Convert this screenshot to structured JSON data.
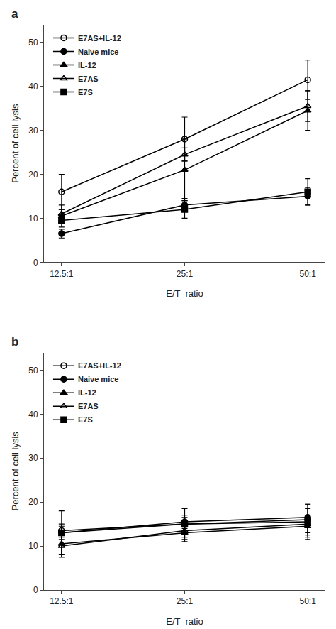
{
  "chart_data": [
    {
      "type": "line",
      "title": "a",
      "categories": [
        "12.5:1",
        "25:1",
        "50:1"
      ],
      "xlabel": "E/T  ratio",
      "ylabel": "Percent of cell lysis",
      "ylim": [
        0,
        54
      ],
      "yticks": [
        0,
        10,
        20,
        30,
        40,
        50
      ],
      "grid": false,
      "legend": "upper left",
      "series": [
        {
          "name": "E7AS+IL-12",
          "color": "black",
          "marker": "circle-open",
          "values": [
            16.0,
            28.0,
            41.5
          ],
          "yerr": [
            4.0,
            5.0,
            4.5
          ]
        },
        {
          "name": "Naive mice",
          "color": "black",
          "marker": "circle",
          "values": [
            6.5,
            13.0,
            15.0
          ],
          "yerr": [
            1.0,
            1.5,
            2.0
          ]
        },
        {
          "name": "IL-12",
          "color": "black",
          "marker": "triangle-up",
          "values": [
            10.5,
            21.0,
            34.5
          ],
          "yerr": [
            1.5,
            7.0,
            4.5
          ]
        },
        {
          "name": "E7AS",
          "color": "black",
          "marker": "triangle-up-open",
          "values": [
            11.0,
            24.5,
            35.5
          ],
          "yerr": [
            2.0,
            1.5,
            3.5
          ]
        },
        {
          "name": "E7S",
          "color": "black",
          "marker": "square",
          "values": [
            9.5,
            12.0,
            16.0
          ],
          "yerr": [
            1.5,
            2.0,
            3.0
          ]
        }
      ]
    },
    {
      "type": "line",
      "title": "b",
      "categories": [
        "12.5:1",
        "25:1",
        "50:1"
      ],
      "xlabel": "E/T  ratio",
      "ylabel": "Percent of cell lysis",
      "ylim": [
        0,
        54
      ],
      "yticks": [
        0,
        10,
        20,
        30,
        40,
        50
      ],
      "grid": false,
      "legend": "upper left",
      "series": [
        {
          "name": "E7AS+IL-12",
          "color": "black",
          "marker": "circle-open",
          "values": [
            13.5,
            15.0,
            16.0
          ],
          "yerr": [
            1.5,
            3.5,
            3.5
          ]
        },
        {
          "name": "Naive mice",
          "color": "black",
          "marker": "circle",
          "values": [
            13.0,
            15.5,
            16.5
          ],
          "yerr": [
            1.5,
            1.5,
            2.0
          ]
        },
        {
          "name": "IL-12",
          "color": "black",
          "marker": "triangle-up",
          "values": [
            10.5,
            13.0,
            14.5
          ],
          "yerr": [
            3.0,
            2.0,
            2.5
          ]
        },
        {
          "name": "E7AS",
          "color": "black",
          "marker": "triangle-up-open",
          "values": [
            10.0,
            13.5,
            15.0
          ],
          "yerr": [
            2.5,
            1.5,
            2.0
          ]
        },
        {
          "name": "E7S",
          "color": "black",
          "marker": "square",
          "values": [
            13.0,
            15.0,
            15.5
          ],
          "yerr": [
            5.0,
            1.5,
            4.0
          ]
        }
      ]
    }
  ]
}
